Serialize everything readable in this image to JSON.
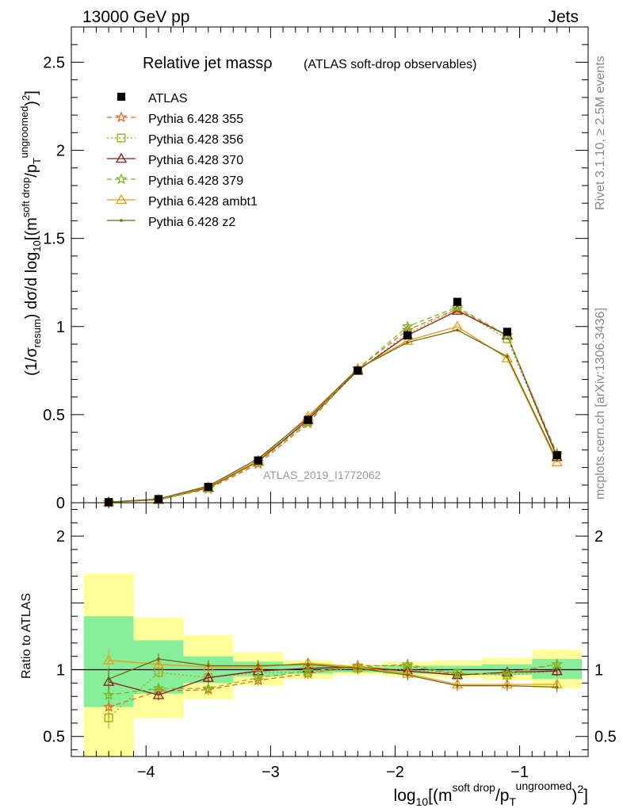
{
  "header": {
    "left": "13000 GeV pp",
    "right": "Jets"
  },
  "side_labels": {
    "rivet": "Rivet 3.1.10, ≥ 2.5M events",
    "mcplots": "mcplots.cern.ch [arXiv:1306.3436]"
  },
  "chart_data": {
    "type": "line",
    "title": "Relative jet massρ",
    "subtitle": "(ATLAS soft-drop observables)",
    "watermark": "ATLAS_2019_I1772062",
    "ylabel": "(1/σresum) dσ/d log10[(m soft drop/pT ungroomed)2]",
    "xlabel": "log10[(m soft drop/pT ungroomed)2]",
    "ratio_ylabel": "Ratio to ATLAS",
    "xlim": [
      -4.6,
      -0.45
    ],
    "ylim": [
      0,
      2.7
    ],
    "ratio_ylim": [
      0.35,
      2.25
    ],
    "x_ticks": [
      -4,
      -3,
      -2,
      -1
    ],
    "x_tick_labels": [
      "−4",
      "−3",
      "−2",
      "−1"
    ],
    "y_ticks": [
      0,
      0.5,
      1,
      1.5,
      2,
      2.5
    ],
    "y_tick_labels": [
      "0",
      "0.5",
      "1",
      "1.5",
      "2",
      "2.5"
    ],
    "ratio_ticks": [
      0.5,
      1,
      2
    ],
    "ratio_tick_labels": [
      "0.5",
      "1",
      "2"
    ],
    "x": [
      -4.3,
      -3.9,
      -3.5,
      -3.1,
      -2.7,
      -2.3,
      -1.9,
      -1.5,
      -1.1,
      -0.7
    ],
    "bin_edges": [
      -4.5,
      -4.1,
      -3.7,
      -3.3,
      -2.9,
      -2.5,
      -2.1,
      -1.7,
      -1.3,
      -0.9,
      -0.5
    ],
    "data": {
      "name": "ATLAS",
      "values": [
        0.003,
        0.02,
        0.09,
        0.24,
        0.47,
        0.75,
        0.95,
        1.14,
        0.97,
        0.27
      ],
      "band_inner": [
        [
          0.72,
          1.4
        ],
        [
          0.82,
          1.22
        ],
        [
          0.9,
          1.1
        ],
        [
          0.95,
          1.06
        ],
        [
          0.97,
          1.04
        ],
        [
          0.98,
          1.02
        ],
        [
          0.97,
          1.03
        ],
        [
          0.97,
          1.03
        ],
        [
          0.96,
          1.04
        ],
        [
          0.93,
          1.08
        ]
      ],
      "band_outer": [
        [
          0.35,
          1.72
        ],
        [
          0.64,
          1.39
        ],
        [
          0.78,
          1.26
        ],
        [
          0.88,
          1.13
        ],
        [
          0.93,
          1.07
        ],
        [
          0.96,
          1.04
        ],
        [
          0.95,
          1.06
        ],
        [
          0.94,
          1.07
        ],
        [
          0.92,
          1.09
        ],
        [
          0.86,
          1.15
        ]
      ]
    },
    "series": [
      {
        "name": "Pythia 6.428 355",
        "color": "#ee6622",
        "marker": "star",
        "dash": "dashed",
        "values": [
          0.002,
          0.017,
          0.078,
          0.22,
          0.45,
          0.76,
          0.98,
          1.1,
          0.95,
          0.27
        ],
        "ratio": [
          0.72,
          0.84,
          0.85,
          0.92,
          0.97,
          1.03,
          1.03,
          0.96,
          0.98,
          1.04
        ]
      },
      {
        "name": "Pythia 6.428 356",
        "color": "#99aa11",
        "marker": "open-square",
        "dash": "dotted",
        "values": [
          0.002,
          0.02,
          0.085,
          0.235,
          0.46,
          0.75,
          0.96,
          1.1,
          0.93,
          0.26
        ],
        "ratio": [
          0.64,
          0.98,
          0.94,
          0.98,
          0.98,
          1.01,
          1.0,
          0.97,
          0.96,
          0.99
        ]
      },
      {
        "name": "Pythia 6.428 370",
        "color": "#8b1a1a",
        "marker": "open-triangle",
        "dash": "solid",
        "values": [
          0.003,
          0.017,
          0.085,
          0.235,
          0.47,
          0.75,
          0.95,
          1.09,
          0.95,
          0.26
        ],
        "ratio": [
          0.91,
          0.81,
          0.94,
          0.99,
          1.01,
          1.02,
          0.99,
          0.96,
          0.98,
          0.99
        ]
      },
      {
        "name": "Pythia 6.428 379",
        "color": "#77bb22",
        "marker": "star",
        "dash": "dashed",
        "values": [
          0.002,
          0.018,
          0.08,
          0.23,
          0.46,
          0.76,
          1.0,
          1.11,
          0.95,
          0.28
        ],
        "ratio": [
          0.81,
          0.86,
          0.86,
          0.94,
          0.99,
          1.02,
          1.04,
          0.97,
          0.97,
          1.04
        ]
      },
      {
        "name": "Pythia 6.428 ambt1",
        "color": "#ee9911",
        "marker": "open-triangle",
        "dash": "solid",
        "values": [
          0.003,
          0.02,
          0.09,
          0.24,
          0.49,
          0.76,
          0.92,
          1.0,
          0.82,
          0.23
        ],
        "ratio": [
          1.07,
          1.04,
          1.02,
          1.02,
          1.05,
          1.02,
          0.97,
          0.89,
          0.89,
          0.89
        ]
      },
      {
        "name": "Pythia 6.428 z2",
        "color": "#6b6b11",
        "marker": "dot",
        "dash": "solid",
        "values": [
          0.003,
          0.022,
          0.095,
          0.25,
          0.48,
          0.76,
          0.91,
          0.98,
          0.83,
          0.24
        ],
        "ratio": [
          0.93,
          1.08,
          1.03,
          1.03,
          1.04,
          1.01,
          0.96,
          0.88,
          0.88,
          0.87
        ]
      }
    ]
  }
}
